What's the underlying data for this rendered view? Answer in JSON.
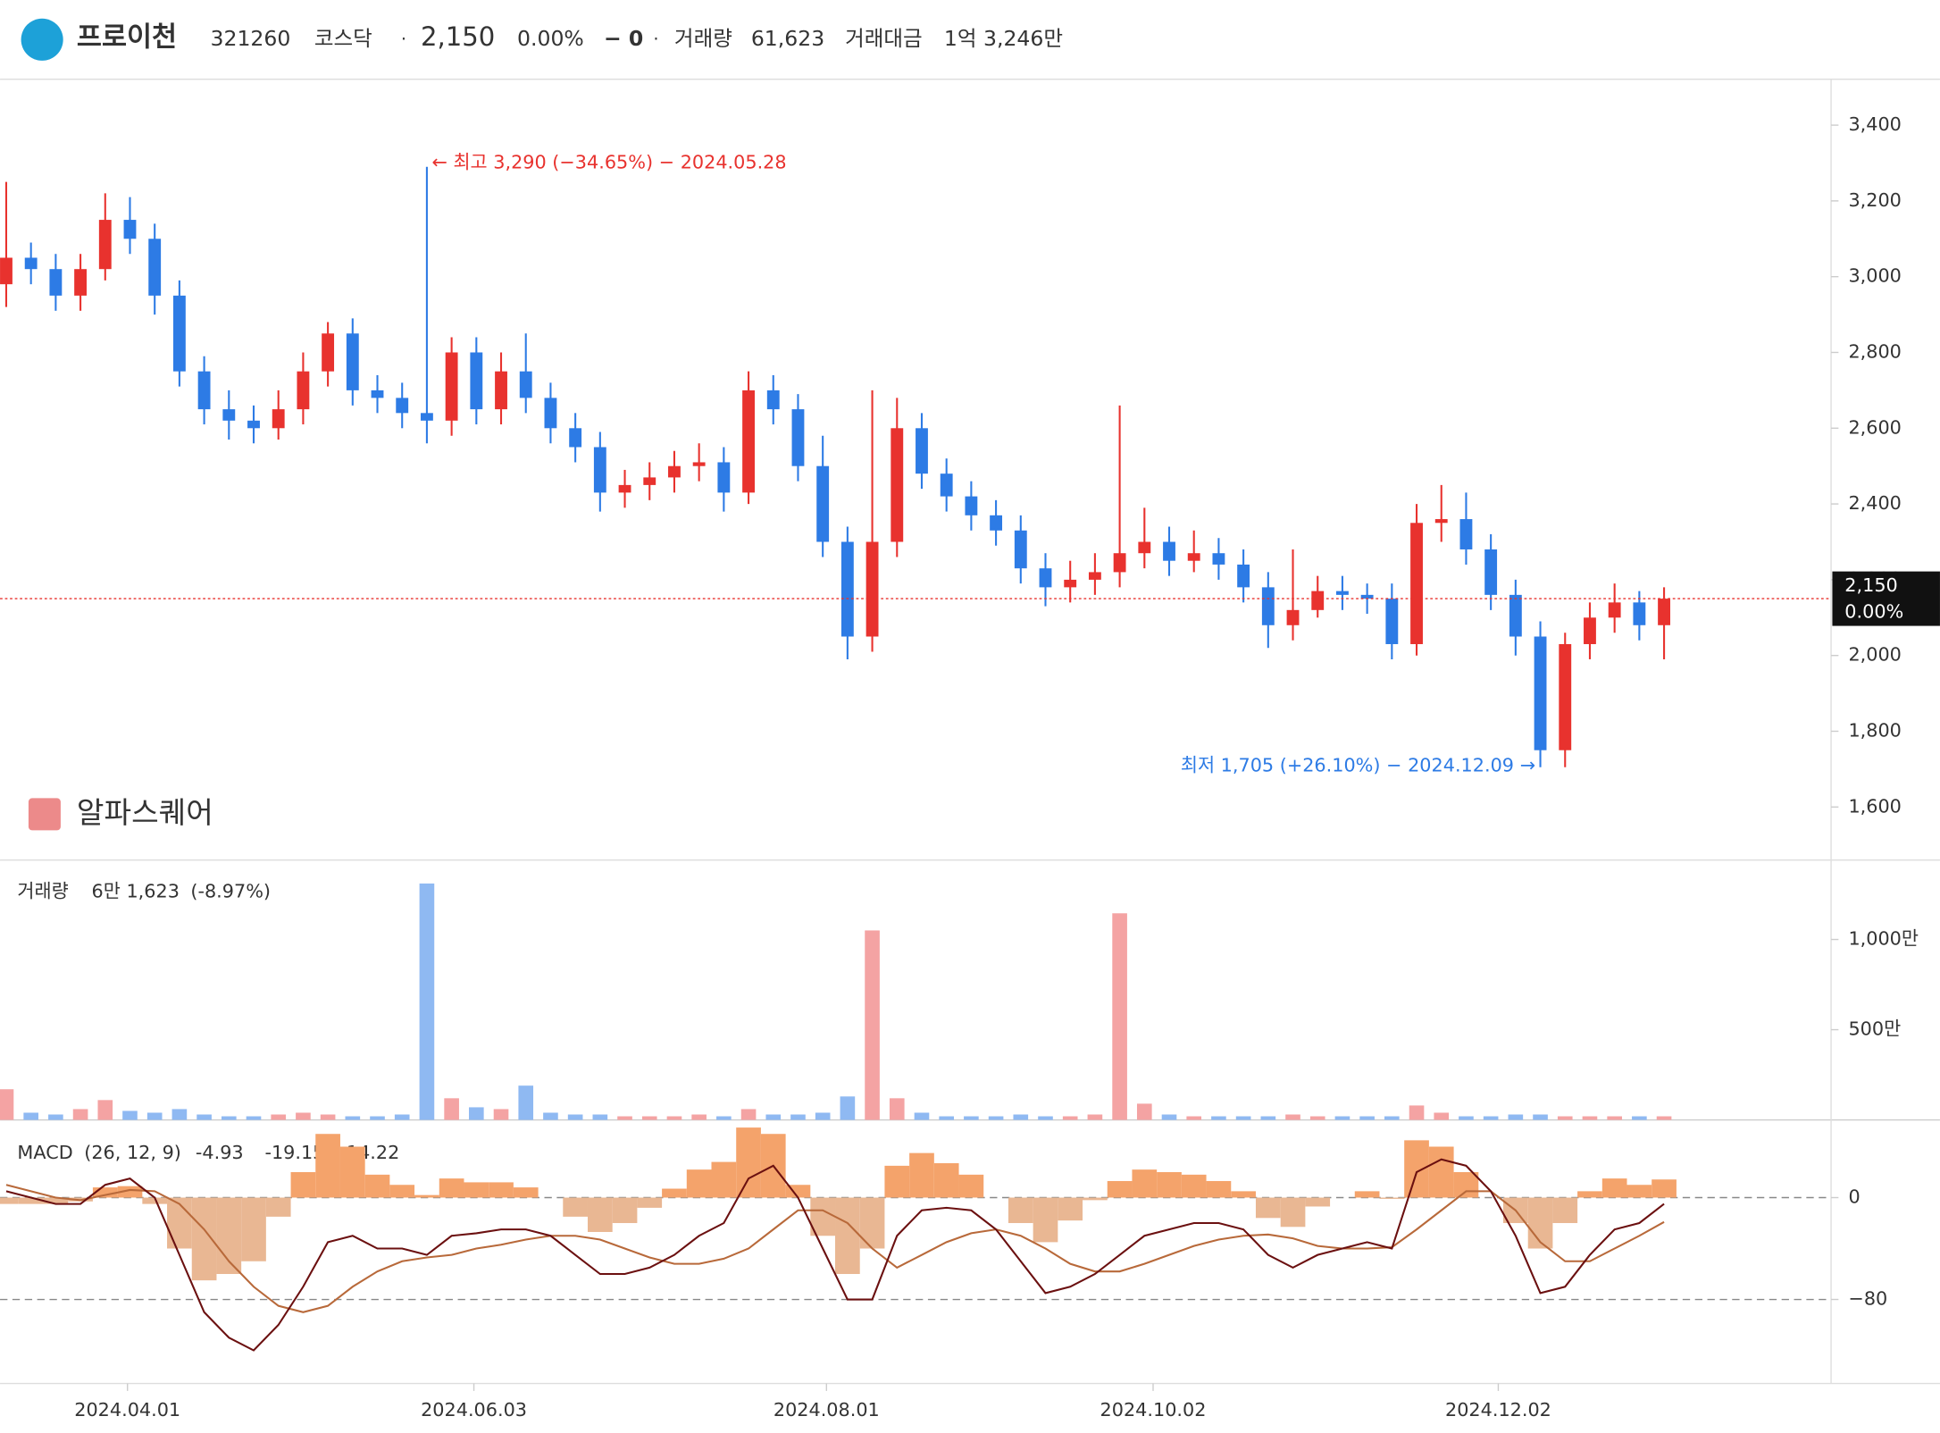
{
  "header": {
    "name": "프로이천",
    "code": "321260",
    "market": "코스닥",
    "price": "2,150",
    "change_pct": "0.00%",
    "change": "− 0",
    "volume_label": "거래량",
    "volume": "61,623",
    "amount_label": "거래대금",
    "amount": "1억 3,246만"
  },
  "chart_data": {
    "type": "candlestick",
    "xlim": [
      -0.25,
      73.75
    ],
    "xticks": [
      {
        "value": 4.9,
        "label": "2024.04.01"
      },
      {
        "value": 18.9,
        "label": "2024.06.03"
      },
      {
        "value": 33.15,
        "label": "2024.08.01"
      },
      {
        "value": 46.35,
        "label": "2024.10.02"
      },
      {
        "value": 60.3,
        "label": "2024.12.02"
      }
    ],
    "ylim": [
      1460,
      3518
    ],
    "yticks": [
      {
        "value": 1600,
        "label": "1,600"
      },
      {
        "value": 1800,
        "label": "1,800"
      },
      {
        "value": 2000,
        "label": "2,000"
      },
      {
        "value": 2200,
        "label": "2,200"
      },
      {
        "value": 2400,
        "label": "2,400"
      },
      {
        "value": 2600,
        "label": "2,600"
      },
      {
        "value": 2800,
        "label": "2,800"
      },
      {
        "value": 3000,
        "label": "3,000"
      },
      {
        "value": 3200,
        "label": "3,200"
      },
      {
        "value": 3400,
        "label": "3,400"
      }
    ],
    "up_color": "#e8322e",
    "down_color": "#2d7be5",
    "open": [
      2980,
      3050,
      3020,
      2950,
      3020,
      3150,
      3100,
      2950,
      2750,
      2650,
      2620,
      2600,
      2650,
      2750,
      2850,
      2700,
      2680,
      2640,
      2620,
      2800,
      2650,
      2750,
      2680,
      2600,
      2550,
      2430,
      2450,
      2470,
      2500,
      2510,
      2430,
      2700,
      2650,
      2500,
      2300,
      2050,
      2300,
      2600,
      2480,
      2420,
      2370,
      2330,
      2230,
      2180,
      2200,
      2220,
      2270,
      2300,
      2250,
      2270,
      2240,
      2180,
      2080,
      2120,
      2170,
      2160,
      2150,
      2030,
      2350,
      2360,
      2280,
      2160,
      2050,
      1750,
      2030,
      2100,
      2140,
      2080
    ],
    "high": [
      3250,
      3090,
      3060,
      3060,
      3220,
      3210,
      3140,
      2990,
      2790,
      2700,
      2660,
      2700,
      2800,
      2880,
      2890,
      2740,
      2720,
      3290,
      2840,
      2840,
      2800,
      2850,
      2720,
      2640,
      2590,
      2490,
      2510,
      2540,
      2560,
      2550,
      2750,
      2740,
      2690,
      2580,
      2340,
      2700,
      2680,
      2640,
      2520,
      2460,
      2410,
      2370,
      2270,
      2250,
      2270,
      2660,
      2390,
      2340,
      2330,
      2310,
      2280,
      2220,
      2280,
      2210,
      2210,
      2190,
      2190,
      2400,
      2450,
      2430,
      2320,
      2200,
      2090,
      2060,
      2140,
      2190,
      2170,
      2180
    ],
    "low": [
      2920,
      2980,
      2910,
      2910,
      2990,
      3060,
      2900,
      2710,
      2610,
      2570,
      2560,
      2570,
      2610,
      2710,
      2660,
      2640,
      2600,
      2560,
      2580,
      2610,
      2610,
      2640,
      2560,
      2510,
      2380,
      2390,
      2410,
      2430,
      2460,
      2380,
      2400,
      2610,
      2460,
      2260,
      1990,
      2010,
      2260,
      2440,
      2380,
      2330,
      2290,
      2190,
      2130,
      2140,
      2160,
      2180,
      2230,
      2210,
      2220,
      2200,
      2140,
      2020,
      2040,
      2100,
      2120,
      2110,
      1990,
      2000,
      2300,
      2240,
      2120,
      2000,
      1705,
      1705,
      1990,
      2060,
      2040,
      1990
    ],
    "close": [
      3050,
      3020,
      2950,
      3020,
      3150,
      3100,
      2950,
      2750,
      2650,
      2620,
      2600,
      2650,
      2750,
      2850,
      2700,
      2680,
      2640,
      2620,
      2800,
      2650,
      2750,
      2680,
      2600,
      2550,
      2430,
      2450,
      2470,
      2500,
      2510,
      2430,
      2700,
      2650,
      2500,
      2300,
      2050,
      2300,
      2600,
      2480,
      2420,
      2370,
      2330,
      2230,
      2180,
      2200,
      2220,
      2270,
      2300,
      2250,
      2270,
      2240,
      2180,
      2080,
      2120,
      2170,
      2160,
      2150,
      2030,
      2350,
      2360,
      2280,
      2160,
      2050,
      1750,
      2030,
      2100,
      2140,
      2080,
      2150
    ],
    "last_price": {
      "value": 2150,
      "label": "2,150"
    },
    "last_change": "0.00%",
    "high_annotation": "← 최고 3,290 (−34.65%) − 2024.05.28",
    "low_annotation": "최저 1,705 (+26.10%) − 2024.12.09 →",
    "watermark": "알파스퀘어",
    "volume_pane": {
      "title": "거래량",
      "value": "6만 1,623",
      "change": "(-8.97%)",
      "ylim": [
        0,
        1440
      ],
      "yticks": [
        {
          "value": 500,
          "label": "500만"
        },
        {
          "value": 1000,
          "label": "1,000만"
        }
      ],
      "up_color": "#f4a3a3",
      "down_color": "#8fb9f2",
      "values": [
        170,
        40,
        30,
        60,
        110,
        50,
        40,
        60,
        30,
        20,
        20,
        30,
        40,
        30,
        20,
        20,
        30,
        1310,
        120,
        70,
        60,
        190,
        40,
        30,
        30,
        20,
        20,
        20,
        30,
        20,
        60,
        30,
        30,
        40,
        130,
        1050,
        120,
        40,
        20,
        20,
        20,
        30,
        20,
        20,
        30,
        1145,
        90,
        30,
        20,
        20,
        20,
        20,
        30,
        20,
        20,
        20,
        20,
        80,
        40,
        20,
        20,
        30,
        30,
        20,
        20,
        20,
        20,
        20
      ]
    },
    "macd_pane": {
      "title": "MACD",
      "params": "(26, 12, 9)",
      "ylim": [
        -146,
        61
      ],
      "yticks": [
        0,
        {
          "value": -80,
          "label": "−80"
        }
      ],
      "macd_color": "#6b1010",
      "signal_color": "#b8693a",
      "hist_up_color": "#f4a36b",
      "hist_down_color": "#e9b793",
      "macd": [
        5,
        0,
        -5,
        -5,
        10,
        15,
        0,
        -45,
        -90,
        -110,
        -120,
        -100,
        -70,
        -35,
        -30,
        -40,
        -40,
        -45,
        -30,
        -28,
        -25,
        -25,
        -30,
        -45,
        -60,
        -60,
        -55,
        -45,
        -30,
        -20,
        15,
        25,
        0,
        -40,
        -80,
        -80,
        -30,
        -10,
        -8,
        -10,
        -25,
        -50,
        -75,
        -70,
        -60,
        -45,
        -30,
        -25,
        -20,
        -20,
        -25,
        -45,
        -55,
        -45,
        -40,
        -35,
        -40,
        20,
        30,
        25,
        5,
        -30,
        -75,
        -70,
        -45,
        -25,
        -20,
        -4.93
      ],
      "signal": [
        10,
        5,
        0,
        -2,
        2,
        6,
        5,
        -5,
        -25,
        -50,
        -70,
        -85,
        -90,
        -85,
        -70,
        -58,
        -50,
        -47,
        -45,
        -40,
        -37,
        -33,
        -30,
        -30,
        -33,
        -40,
        -47,
        -52,
        -52,
        -48,
        -40,
        -25,
        -10,
        -10,
        -20,
        -40,
        -55,
        -45,
        -35,
        -28,
        -25,
        -30,
        -40,
        -52,
        -58,
        -58,
        -52,
        -45,
        -38,
        -33,
        -30,
        -29,
        -32,
        -38,
        -40,
        -40,
        -39,
        -25,
        -10,
        5,
        5,
        -10,
        -35,
        -50,
        -50,
        -40,
        -30,
        -19.15
      ],
      "histogram": [
        -5,
        -5,
        -5,
        -3,
        8,
        9,
        -5,
        -40,
        -65,
        -60,
        -50,
        -15,
        20,
        50,
        40,
        18,
        10,
        2,
        15,
        12,
        12,
        8,
        0,
        -15,
        -27,
        -20,
        -8,
        7,
        22,
        28,
        55,
        50,
        10,
        -30,
        -60,
        -40,
        25,
        35,
        27,
        18,
        0,
        -20,
        -35,
        -18,
        -2,
        13,
        22,
        20,
        18,
        13,
        5,
        -16,
        -23,
        -7,
        0,
        5,
        -1,
        45,
        40,
        20,
        0,
        -20,
        -40,
        -20,
        5,
        15,
        10,
        14.22
      ]
    }
  }
}
